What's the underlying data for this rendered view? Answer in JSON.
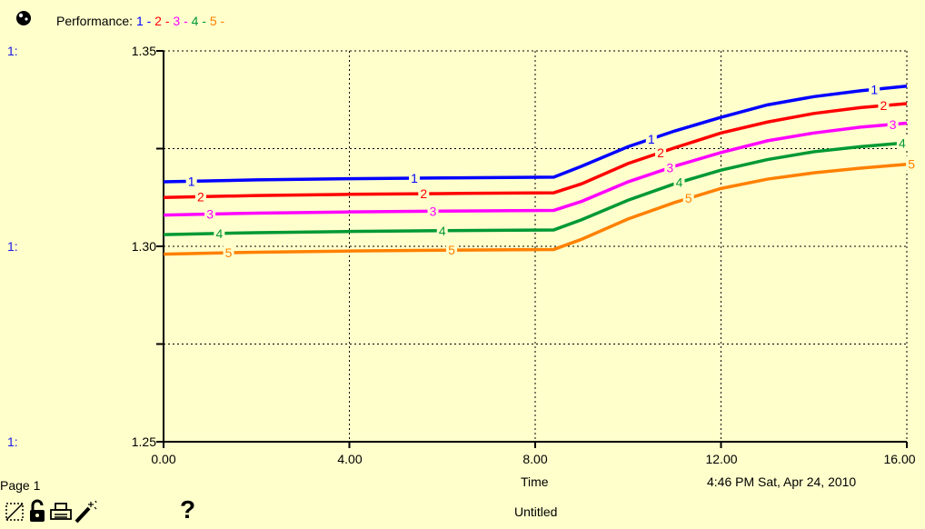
{
  "header": {
    "legend_prefix": "Performance:",
    "legend_items": [
      {
        "label": "1",
        "color": "#0000FF",
        "sep": " - "
      },
      {
        "label": "2",
        "color": "#FF0000",
        "sep": " - "
      },
      {
        "label": "3",
        "color": "#FF00FF",
        "sep": " - "
      },
      {
        "label": "4",
        "color": "#009933",
        "sep": " - "
      },
      {
        "label": "5",
        "color": "#FF8000",
        "sep": " -"
      }
    ]
  },
  "scale_labels": [
    "1:",
    "1:",
    "1:"
  ],
  "chart_data": {
    "type": "line",
    "xlabel": "Time",
    "ylabel": "",
    "xlim": [
      0,
      16
    ],
    "ylim": [
      1.25,
      1.35
    ],
    "x_ticks": [
      "0.00",
      "4.00",
      "8.00",
      "12.00",
      "16.00"
    ],
    "y_ticks": [
      "1.35",
      "1.30",
      "1.25"
    ],
    "grid": true,
    "series": [
      {
        "name": "1",
        "color": "#0000FF",
        "x": [
          0,
          2,
          4,
          6,
          8.4,
          9,
          10,
          11,
          12,
          13,
          14,
          15,
          16
        ],
        "y": [
          1.3165,
          1.317,
          1.3173,
          1.3175,
          1.3177,
          1.3205,
          1.3255,
          1.3295,
          1.333,
          1.3362,
          1.3383,
          1.3398,
          1.341
        ]
      },
      {
        "name": "2",
        "color": "#FF0000",
        "x": [
          0,
          2,
          4,
          6,
          8.4,
          9,
          10,
          11,
          12,
          13,
          14,
          15,
          16
        ],
        "y": [
          1.3125,
          1.313,
          1.3133,
          1.3135,
          1.3137,
          1.316,
          1.3212,
          1.3252,
          1.329,
          1.3318,
          1.334,
          1.3355,
          1.3365
        ]
      },
      {
        "name": "3",
        "color": "#FF00FF",
        "x": [
          0,
          2,
          4,
          6,
          8.4,
          9,
          10,
          11,
          12,
          13,
          14,
          15,
          16
        ],
        "y": [
          1.308,
          1.3085,
          1.3088,
          1.309,
          1.3092,
          1.3115,
          1.3165,
          1.3205,
          1.324,
          1.327,
          1.329,
          1.3305,
          1.3315
        ]
      },
      {
        "name": "4",
        "color": "#009933",
        "x": [
          0,
          2,
          4,
          6,
          8.4,
          9,
          10,
          11,
          12,
          13,
          14,
          15,
          16
        ],
        "y": [
          1.303,
          1.3035,
          1.3038,
          1.304,
          1.3042,
          1.3068,
          1.3118,
          1.316,
          1.3195,
          1.3222,
          1.3242,
          1.3255,
          1.3265
        ]
      },
      {
        "name": "5",
        "color": "#FF8000",
        "x": [
          0,
          2,
          4,
          6,
          8.4,
          9,
          10,
          11,
          12,
          13,
          14,
          15,
          16
        ],
        "y": [
          1.298,
          1.2985,
          1.2988,
          1.299,
          1.2992,
          1.3018,
          1.307,
          1.3112,
          1.3148,
          1.3172,
          1.3188,
          1.32,
          1.321
        ]
      }
    ],
    "label_positions_x": [
      0.6,
      5.4,
      10.5,
      15.3
    ]
  },
  "footer": {
    "page": "Page 1",
    "time_label": "Time",
    "timestamp": "4:46 PM   Sat, Apr 24, 2010",
    "untitled": "Untitled"
  },
  "toolbar": {
    "icons": [
      "graph-pad-icon",
      "lock-icon",
      "print-icon",
      "magic-wand-icon",
      "help-icon"
    ],
    "help_label": "?"
  }
}
